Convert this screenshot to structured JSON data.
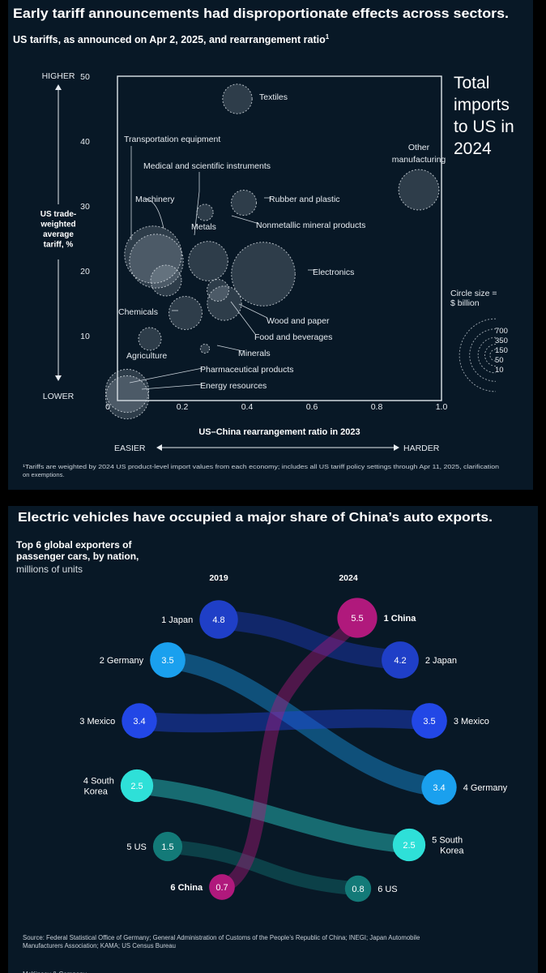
{
  "chart_data": [
    {
      "type": "scatter",
      "title": "Early tariff announcements had disproportionate effects across sectors.",
      "subtitle": "US tariffs, as announced on Apr 2, 2025, and rearrangement ratio",
      "subtitle_sup": "1",
      "xlabel": "US–China rearrangement ratio in 2023",
      "ylabel_lines": [
        "US trade-",
        "weighted",
        "average",
        "tariff, %"
      ],
      "y_high_label": "HIGHER",
      "y_low_label": "LOWER",
      "x_easy_label": "EASIER",
      "x_hard_label": "HARDER",
      "x_ticks": [
        "0",
        "0.2",
        "0.4",
        "0.6",
        "0.8",
        "1.0"
      ],
      "y_ticks": [
        "10",
        "20",
        "30",
        "40",
        "50"
      ],
      "xlim": [
        0,
        1.0
      ],
      "ylim": [
        0,
        50
      ],
      "size_legend_title_lines": [
        "Circle size =",
        "$ billion"
      ],
      "size_legend_values": [
        700,
        350,
        150,
        50,
        10
      ],
      "side_title_lines": [
        "Total",
        "imports",
        "to US in",
        "2024"
      ],
      "footnote_lines": [
        "¹Tariffs are weighted by 2024 US product-level import values from each economy; includes all US tariff policy settings through Apr 11, 2025, clarification",
        "on exemptions."
      ],
      "points": [
        {
          "label": "Textiles",
          "x": 0.37,
          "y": 46.5,
          "size": 100
        },
        {
          "label": "Transportation equipment",
          "x": 0.12,
          "y": 21.5,
          "size": 370
        },
        {
          "label": "Medical and scientific instruments",
          "x": 0.15,
          "y": 18.5,
          "size": 110
        },
        {
          "label": "Machinery",
          "x": 0.11,
          "y": 22.5,
          "size": 420
        },
        {
          "label": "Other manufacturing",
          "x": 0.93,
          "y": 32.5,
          "size": 200
        },
        {
          "label": "Rubber and plastic",
          "x": 0.39,
          "y": 30.5,
          "size": 70
        },
        {
          "label": "Metals",
          "x": 0.27,
          "y": 29.0,
          "size": 25
        },
        {
          "label": "Nonmetallic mineral products",
          "x": 0.28,
          "y": 21.5,
          "size": 190
        },
        {
          "label": "Electronics",
          "x": 0.45,
          "y": 19.5,
          "size": 530
        },
        {
          "label": "Chemicals",
          "x": 0.21,
          "y": 13.5,
          "size": 130
        },
        {
          "label": "Wood and paper",
          "x": 0.31,
          "y": 17.0,
          "size": 50
        },
        {
          "label": "Food and beverages",
          "x": 0.33,
          "y": 15.0,
          "size": 140
        },
        {
          "label": "Agriculture",
          "x": 0.1,
          "y": 9.5,
          "size": 55
        },
        {
          "label": "Minerals",
          "x": 0.27,
          "y": 8.0,
          "size": 5
        },
        {
          "label": "Pharmaceutical products",
          "x": 0.03,
          "y": 1.5,
          "size": 230
        },
        {
          "label": "Energy resources",
          "x": 0.03,
          "y": 0.5,
          "size": 230
        }
      ]
    },
    {
      "type": "bump",
      "title": "Electric vehicles have occupied a major share of China’s auto exports.",
      "subtitle_lines": [
        "Top 6 global exporters of",
        "passenger cars, by nation,"
      ],
      "units": "millions of units",
      "year_left": "2019",
      "year_right": "2024",
      "source_lines": [
        "Source: Federal Statistical Office of Germany; General Administration of Customs of the People’s Republic of China; INEGI; Japan Automobile",
        "Manufacturers Association; KAMA; US Census Bureau"
      ],
      "footer": "McKinsey & Company",
      "left": [
        {
          "rank": 1,
          "lines": [
            "1 Japan"
          ],
          "value": 4.8,
          "label": "4.8",
          "color": "#1f3fc7"
        },
        {
          "rank": 2,
          "lines": [
            "2 Germany"
          ],
          "value": 3.5,
          "label": "3.5",
          "color": "#1aa0ee"
        },
        {
          "rank": 3,
          "lines": [
            "3 Mexico"
          ],
          "value": 3.4,
          "label": "3.4",
          "color": "#2247e6"
        },
        {
          "rank": 4,
          "lines": [
            "4 South",
            "Korea"
          ],
          "value": 2.5,
          "label": "2.5",
          "color": "#2ee0d8"
        },
        {
          "rank": 5,
          "lines": [
            "5 US"
          ],
          "value": 1.5,
          "label": "1.5",
          "color": "#137a78"
        },
        {
          "rank": 6,
          "lines": [
            "6 China"
          ],
          "value": 0.7,
          "label": "0.7",
          "color": "#b0197c"
        }
      ],
      "right": [
        {
          "rank": 1,
          "lines": [
            "1 China"
          ],
          "value": 5.5,
          "label": "5.5",
          "color": "#b0197c"
        },
        {
          "rank": 2,
          "lines": [
            "2 Japan"
          ],
          "value": 4.2,
          "label": "4.2",
          "color": "#1f3fc7"
        },
        {
          "rank": 3,
          "lines": [
            "3 Mexico"
          ],
          "value": 3.5,
          "label": "3.5",
          "color": "#2247e6"
        },
        {
          "rank": 4,
          "lines": [
            "4 Germany"
          ],
          "value": 3.4,
          "label": "3.4",
          "color": "#1aa0ee"
        },
        {
          "rank": 5,
          "lines": [
            "5 South",
            "Korea"
          ],
          "value": 2.5,
          "label": "2.5",
          "color": "#2ee0d8"
        },
        {
          "rank": 6,
          "lines": [
            "6 US"
          ],
          "value": 0.8,
          "label": "0.8",
          "color": "#137a78"
        }
      ],
      "flows": [
        {
          "from_rank": 1,
          "to_rank": 2,
          "color": "#1f3fc7"
        },
        {
          "from_rank": 2,
          "to_rank": 4,
          "color": "#1aa0ee"
        },
        {
          "from_rank": 3,
          "to_rank": 3,
          "color": "#2247e6"
        },
        {
          "from_rank": 4,
          "to_rank": 5,
          "color": "#2ee0d8"
        },
        {
          "from_rank": 5,
          "to_rank": 6,
          "color": "#137a78"
        },
        {
          "from_rank": 6,
          "to_rank": 1,
          "color": "#b0197c"
        }
      ]
    }
  ]
}
